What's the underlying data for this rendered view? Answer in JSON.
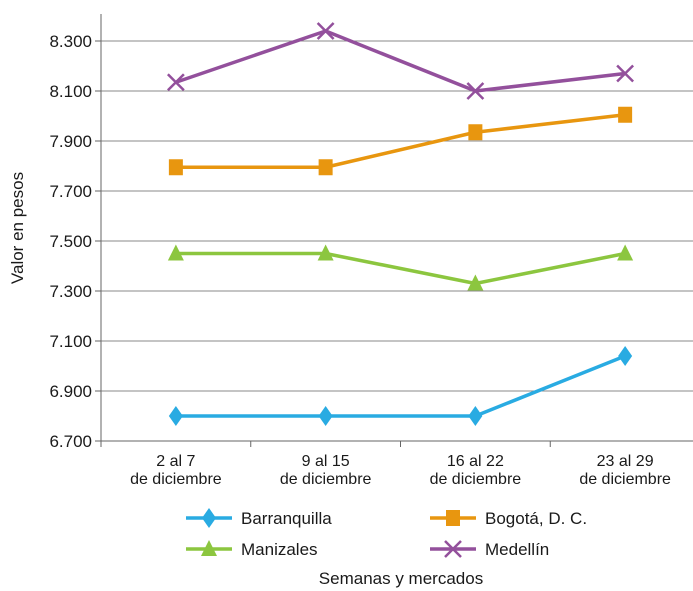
{
  "chart_data": {
    "type": "line",
    "title": "",
    "xlabel": "Semanas y mercados",
    "ylabel": "Valor en pesos",
    "ylim": [
      6700,
      8400
    ],
    "yticks": [
      6700,
      6900,
      7100,
      7300,
      7500,
      7700,
      7900,
      8100,
      8300
    ],
    "ytick_labels": [
      "6.700",
      "6.900",
      "7.100",
      "7.300",
      "7.500",
      "7.700",
      "7.900",
      "8.100",
      "8.300"
    ],
    "grid": true,
    "legend_position": "bottom",
    "categories": [
      [
        "2 al 7",
        "de diciembre"
      ],
      [
        "9 al 15",
        "de diciembre"
      ],
      [
        "16 al 22",
        "de diciembre"
      ],
      [
        "23 al 29",
        "de diciembre"
      ]
    ],
    "series": [
      {
        "name": "Barranquilla",
        "color": "#29abe2",
        "marker": "diamond",
        "values": [
          6800,
          6800,
          6800,
          7040
        ]
      },
      {
        "name": "Bogotá, D. C.",
        "color": "#e8960f",
        "marker": "square",
        "values": [
          7795,
          7795,
          7935,
          8005
        ]
      },
      {
        "name": "Manizales",
        "color": "#8cc63f",
        "marker": "triangle",
        "values": [
          7450,
          7450,
          7330,
          7450
        ]
      },
      {
        "name": "Medellín",
        "color": "#93509c",
        "marker": "cross",
        "values": [
          8135,
          8340,
          8100,
          8170
        ]
      }
    ]
  }
}
